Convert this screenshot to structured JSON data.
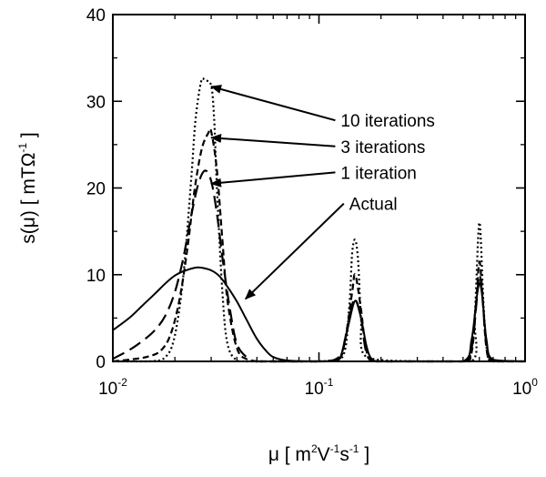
{
  "chart_data": {
    "type": "line",
    "xscale": "log",
    "xlim": [
      0.01,
      1
    ],
    "ylim": [
      0,
      40
    ],
    "xlabel": {
      "pre": "μ [ m",
      "s1": "2",
      "mid1": "V",
      "s2": "-1",
      "mid2": "s",
      "s3": "-1",
      "post": " ]"
    },
    "ylabel": {
      "pre": "s(μ) [ mTΩ",
      "s1": "-1",
      "post": " ]"
    },
    "y_ticks": [
      {
        "value": 0,
        "label": "0"
      },
      {
        "value": 10,
        "label": "10"
      },
      {
        "value": 20,
        "label": "20"
      },
      {
        "value": 30,
        "label": "30"
      },
      {
        "value": 40,
        "label": "40"
      }
    ],
    "x_ticks": [
      {
        "value": 0.01,
        "base": "10",
        "exp": "-2"
      },
      {
        "value": 0.1,
        "base": "10",
        "exp": "-1"
      },
      {
        "value": 1,
        "base": "10",
        "exp": "0"
      }
    ],
    "series": [
      {
        "name": "Actual",
        "dash": "solid",
        "color": "#000000",
        "x": [
          0.01,
          0.012,
          0.014,
          0.016,
          0.018,
          0.02,
          0.022,
          0.025,
          0.027,
          0.03,
          0.033,
          0.036,
          0.04,
          0.045,
          0.05,
          0.055,
          0.06,
          0.07,
          0.09,
          0.12,
          0.13,
          0.14,
          0.15,
          0.16,
          0.17,
          0.18,
          0.2,
          0.3,
          0.5,
          0.55,
          0.58,
          0.6,
          0.62,
          0.65,
          0.7,
          1.0
        ],
        "y": [
          3.6,
          5.0,
          6.5,
          7.8,
          9.0,
          9.9,
          10.4,
          10.8,
          10.8,
          10.5,
          9.8,
          8.6,
          6.9,
          4.6,
          2.6,
          1.3,
          0.5,
          0.1,
          0,
          0,
          1.2,
          4.5,
          7.0,
          5.0,
          1.8,
          0.3,
          0,
          0,
          0,
          2.5,
          7.0,
          9.0,
          7.5,
          2.5,
          0.2,
          0
        ]
      },
      {
        "name": "1 iteration",
        "dash": "longdash",
        "color": "#000000",
        "x": [
          0.01,
          0.012,
          0.014,
          0.016,
          0.018,
          0.02,
          0.022,
          0.024,
          0.026,
          0.028,
          0.03,
          0.032,
          0.034,
          0.037,
          0.04,
          0.045,
          0.05,
          0.06,
          0.1,
          0.125,
          0.135,
          0.145,
          0.15,
          0.16,
          0.17,
          0.19,
          0.3,
          0.5,
          0.55,
          0.58,
          0.6,
          0.62,
          0.65,
          0.7,
          1.0
        ],
        "y": [
          0.3,
          1.3,
          2.4,
          3.6,
          5.3,
          8.0,
          12.0,
          16.8,
          20.5,
          22.0,
          20.8,
          17.0,
          12.0,
          6.0,
          2.0,
          0.4,
          0,
          0,
          0,
          0.5,
          3.0,
          6.5,
          7.2,
          5.0,
          1.0,
          0,
          0,
          0,
          1.5,
          6.5,
          10.0,
          7.5,
          2.0,
          0.1,
          0
        ]
      },
      {
        "name": "3 iterations",
        "dash": "shortdash",
        "color": "#000000",
        "x": [
          0.01,
          0.013,
          0.015,
          0.017,
          0.019,
          0.021,
          0.023,
          0.025,
          0.027,
          0.029,
          0.03,
          0.032,
          0.034,
          0.036,
          0.04,
          0.045,
          0.05,
          0.1,
          0.125,
          0.135,
          0.145,
          0.15,
          0.16,
          0.17,
          0.19,
          0.3,
          0.5,
          0.55,
          0.58,
          0.6,
          0.62,
          0.65,
          0.7,
          1.0
        ],
        "y": [
          0,
          0.3,
          0.6,
          1.2,
          3.0,
          7.0,
          13.0,
          20.0,
          24.5,
          26.3,
          26.5,
          22.0,
          14.0,
          7.0,
          1.5,
          0.2,
          0,
          0,
          0.2,
          3.0,
          8.0,
          10.0,
          6.0,
          1.2,
          0,
          0,
          0,
          1.0,
          7.0,
          11.5,
          8.0,
          1.5,
          0,
          0
        ]
      },
      {
        "name": "10 iterations",
        "dash": "dotted",
        "color": "#000000",
        "x": [
          0.01,
          0.015,
          0.018,
          0.02,
          0.022,
          0.024,
          0.025,
          0.026,
          0.027,
          0.028,
          0.03,
          0.031,
          0.032,
          0.034,
          0.036,
          0.04,
          0.045,
          0.1,
          0.13,
          0.14,
          0.145,
          0.15,
          0.155,
          0.16,
          0.17,
          0.3,
          0.55,
          0.57,
          0.59,
          0.6,
          0.61,
          0.63,
          0.66,
          0.7,
          1.0
        ],
        "y": [
          0,
          0,
          0.5,
          3.0,
          10.0,
          21.0,
          27.0,
          30.5,
          32.5,
          32.4,
          31.8,
          28.0,
          20.0,
          8.0,
          2.0,
          0.1,
          0,
          0,
          0.5,
          6.0,
          12.5,
          14.0,
          11.5,
          5.0,
          0.5,
          0,
          0,
          5.0,
          13.5,
          16.0,
          14.0,
          6.0,
          0.5,
          0,
          0
        ]
      }
    ],
    "annotations": [
      {
        "text": "10 iterations",
        "tx": 0.12,
        "ty": 27.8,
        "label_anchor": "start",
        "ax": 0.03,
        "ay": 31.7
      },
      {
        "text": "3 iterations",
        "tx": 0.12,
        "ty": 24.8,
        "label_anchor": "start",
        "ax": 0.03,
        "ay": 25.8
      },
      {
        "text": "1 iteration",
        "tx": 0.12,
        "ty": 21.8,
        "label_anchor": "start",
        "ax": 0.03,
        "ay": 20.5
      },
      {
        "text": "Actual",
        "tx": 0.132,
        "ty": 18.2,
        "label_anchor": "start",
        "ax": 0.044,
        "ay": 7.2
      }
    ]
  }
}
